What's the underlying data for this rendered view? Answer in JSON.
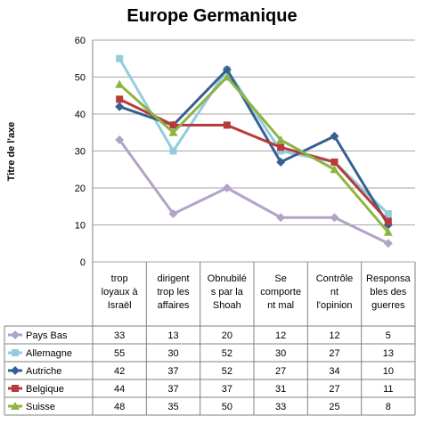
{
  "chart_data": {
    "type": "line",
    "title": "Europe Germanique",
    "ylabel": "Titre de l'axe",
    "xlabel": "",
    "ylim": [
      0,
      60
    ],
    "yticks": [
      0,
      10,
      20,
      30,
      40,
      50,
      60
    ],
    "grid": true,
    "legend": "data-table",
    "categories": [
      [
        "trop",
        "loyaux à",
        "Israël"
      ],
      [
        "dirigent",
        "trop les",
        "affaires"
      ],
      [
        "Obnubilé",
        "s par la",
        "Shoah"
      ],
      [
        "Se",
        "comporte",
        "nt mal"
      ],
      [
        "Contrôle",
        "nt",
        "l'opinion"
      ],
      [
        "Responsa",
        "bles des",
        "guerres"
      ]
    ],
    "series": [
      {
        "name": "Pays Bas",
        "color": "#b3a2c7",
        "marker": "diamond",
        "values": [
          33,
          13,
          20,
          12,
          12,
          5
        ]
      },
      {
        "name": "Allemagne",
        "color": "#93cddd",
        "marker": "square",
        "values": [
          55,
          30,
          52,
          30,
          27,
          13
        ]
      },
      {
        "name": "Autriche",
        "color": "#376092",
        "marker": "diamond",
        "values": [
          42,
          37,
          52,
          27,
          34,
          10
        ]
      },
      {
        "name": "Belgique",
        "color": "#b83b3b",
        "marker": "square",
        "values": [
          44,
          37,
          37,
          31,
          27,
          11
        ]
      },
      {
        "name": "Suisse",
        "color": "#8eb442",
        "marker": "triangle",
        "values": [
          48,
          35,
          50,
          33,
          25,
          8
        ]
      }
    ]
  }
}
